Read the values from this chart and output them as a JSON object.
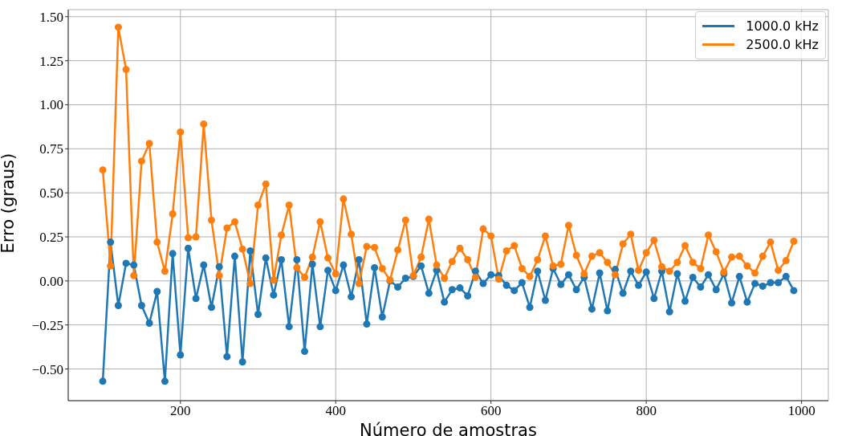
{
  "chart_data": {
    "type": "line",
    "xlabel": "Número de amostras",
    "ylabel": "Erro (graus)",
    "x": [
      100,
      110,
      120,
      130,
      140,
      150,
      160,
      170,
      180,
      190,
      200,
      210,
      220,
      230,
      240,
      250,
      260,
      270,
      280,
      290,
      300,
      310,
      320,
      330,
      340,
      350,
      360,
      370,
      380,
      390,
      400,
      410,
      420,
      430,
      440,
      450,
      460,
      470,
      480,
      490,
      500,
      510,
      520,
      530,
      540,
      550,
      560,
      570,
      580,
      590,
      600,
      610,
      620,
      630,
      640,
      650,
      660,
      670,
      680,
      690,
      700,
      710,
      720,
      730,
      740,
      750,
      760,
      770,
      780,
      790,
      800,
      810,
      820,
      830,
      840,
      850,
      860,
      870,
      880,
      890,
      900,
      910,
      920,
      930,
      940,
      950,
      960,
      970,
      980,
      990
    ],
    "series": [
      {
        "name": "1000.0 kHz",
        "color": "#1f77b4",
        "values": [
          -0.57,
          0.22,
          -0.14,
          0.1,
          0.09,
          -0.14,
          -0.24,
          -0.06,
          -0.57,
          0.155,
          -0.42,
          0.185,
          -0.1,
          0.09,
          -0.15,
          0.08,
          -0.43,
          0.14,
          -0.46,
          0.17,
          -0.19,
          0.13,
          -0.08,
          0.12,
          -0.26,
          0.12,
          -0.4,
          0.095,
          -0.26,
          0.06,
          -0.055,
          0.09,
          -0.09,
          0.12,
          -0.245,
          0.075,
          -0.205,
          0.0,
          -0.035,
          0.015,
          0.025,
          0.085,
          -0.07,
          0.06,
          -0.12,
          -0.05,
          -0.04,
          -0.085,
          0.055,
          -0.015,
          0.035,
          0.03,
          -0.025,
          -0.055,
          -0.01,
          -0.15,
          0.055,
          -0.11,
          0.07,
          -0.02,
          0.035,
          -0.05,
          0.02,
          -0.16,
          0.045,
          -0.17,
          0.065,
          -0.07,
          0.055,
          -0.025,
          0.05,
          -0.1,
          0.055,
          -0.175,
          0.04,
          -0.115,
          0.02,
          -0.035,
          0.035,
          -0.05,
          0.04,
          -0.125,
          0.025,
          -0.12,
          -0.015,
          -0.03,
          -0.01,
          -0.01,
          0.025,
          -0.055
        ]
      },
      {
        "name": "2500.0 kHz",
        "color": "#ff7f0e",
        "values": [
          0.63,
          0.085,
          1.44,
          1.2,
          0.03,
          0.68,
          0.78,
          0.22,
          0.055,
          0.38,
          0.845,
          0.245,
          0.25,
          0.89,
          0.345,
          0.03,
          0.3,
          0.335,
          0.18,
          -0.015,
          0.43,
          0.55,
          0.005,
          0.26,
          0.43,
          0.075,
          0.02,
          0.135,
          0.335,
          0.13,
          0.04,
          0.465,
          0.265,
          -0.015,
          0.195,
          0.19,
          0.07,
          0.005,
          0.175,
          0.345,
          0.03,
          0.135,
          0.35,
          0.09,
          0.015,
          0.11,
          0.185,
          0.12,
          0.02,
          0.295,
          0.255,
          0.01,
          0.17,
          0.2,
          0.07,
          0.025,
          0.12,
          0.255,
          0.085,
          0.095,
          0.315,
          0.145,
          0.04,
          0.14,
          0.16,
          0.105,
          0.035,
          0.21,
          0.265,
          0.06,
          0.16,
          0.23,
          0.08,
          0.055,
          0.105,
          0.2,
          0.105,
          0.07,
          0.26,
          0.165,
          0.05,
          0.135,
          0.14,
          0.085,
          0.045,
          0.14,
          0.22,
          0.06,
          0.115,
          0.225
        ]
      }
    ],
    "xlim": [
      55.5,
      1034.5
    ],
    "xticks": [
      200,
      400,
      600,
      800,
      1000
    ],
    "ylim": [
      -0.68,
      1.54
    ],
    "yticks": [
      {
        "value": -0.5,
        "label": "−0.50"
      },
      {
        "value": -0.25,
        "label": "−0.25"
      },
      {
        "value": 0,
        "label": "0.00"
      },
      {
        "value": 0.25,
        "label": "0.25"
      },
      {
        "value": 0.5,
        "label": "0.50"
      },
      {
        "value": 0.75,
        "label": "0.75"
      },
      {
        "value": 1,
        "label": "1.00"
      },
      {
        "value": 1.25,
        "label": "1.25"
      },
      {
        "value": 1.5,
        "label": "1.50"
      }
    ],
    "grid": true,
    "legend": "top right",
    "marker": "circle",
    "line_style": "solid"
  }
}
